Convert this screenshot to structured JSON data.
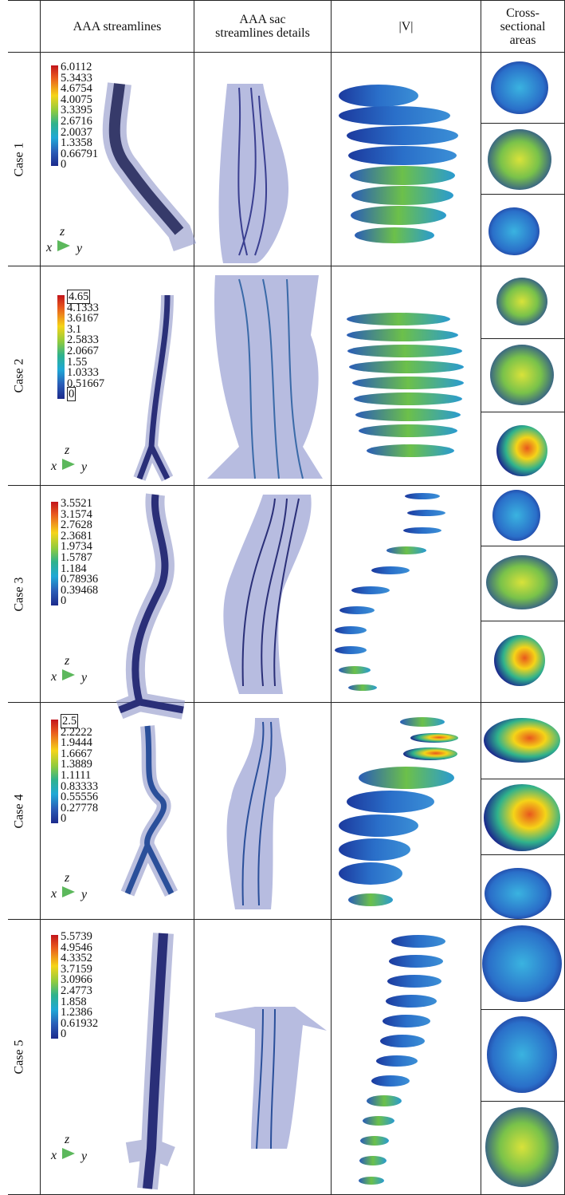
{
  "headers": {
    "col1": "AAA streamlines",
    "col2_line1": "AAA sac",
    "col2_line2": "streamlines details",
    "col3": "|V|",
    "col4_line1": "Cross-",
    "col4_line2": "sectional",
    "col4_line3": "areas"
  },
  "axes_labels": {
    "z": "z",
    "x": "x",
    "y": "y"
  },
  "cases": [
    {
      "label": "Case 1",
      "ticks": [
        "6.0112",
        "5.3433",
        "4.6754",
        "4.0075",
        "3.3395",
        "2.6716",
        "2.0037",
        "1.3358",
        "0.66791",
        "0"
      ]
    },
    {
      "label": "Case 2",
      "ticks": [
        "4.65",
        "4.1333",
        "3.6167",
        "3.1",
        "2.5833",
        "2.0667",
        "1.55",
        "1.0333",
        "0.51667",
        "0"
      ]
    },
    {
      "label": "Case 3",
      "ticks": [
        "3.5521",
        "3.1574",
        "2.7628",
        "2.3681",
        "1.9734",
        "1.5787",
        "1.184",
        "0.78936",
        "0.39468",
        "0"
      ]
    },
    {
      "label": "Case 4",
      "ticks": [
        "2.5",
        "2.2222",
        "1.9444",
        "1.6667",
        "1.3889",
        "1.1111",
        "0.83333",
        "0.55556",
        "0.27778",
        "0"
      ]
    },
    {
      "label": "Case 5",
      "ticks": [
        "5.5739",
        "4.9546",
        "4.3352",
        "3.7159",
        "3.0966",
        "2.4773",
        "1.858",
        "1.2386",
        "0.61932",
        "0"
      ]
    }
  ],
  "colormap": [
    "#1c2a8c",
    "#2a5db7",
    "#1fa8d6",
    "#2fb28c",
    "#8fcb3f",
    "#f5d418",
    "#e8581d",
    "#c2141b"
  ]
}
